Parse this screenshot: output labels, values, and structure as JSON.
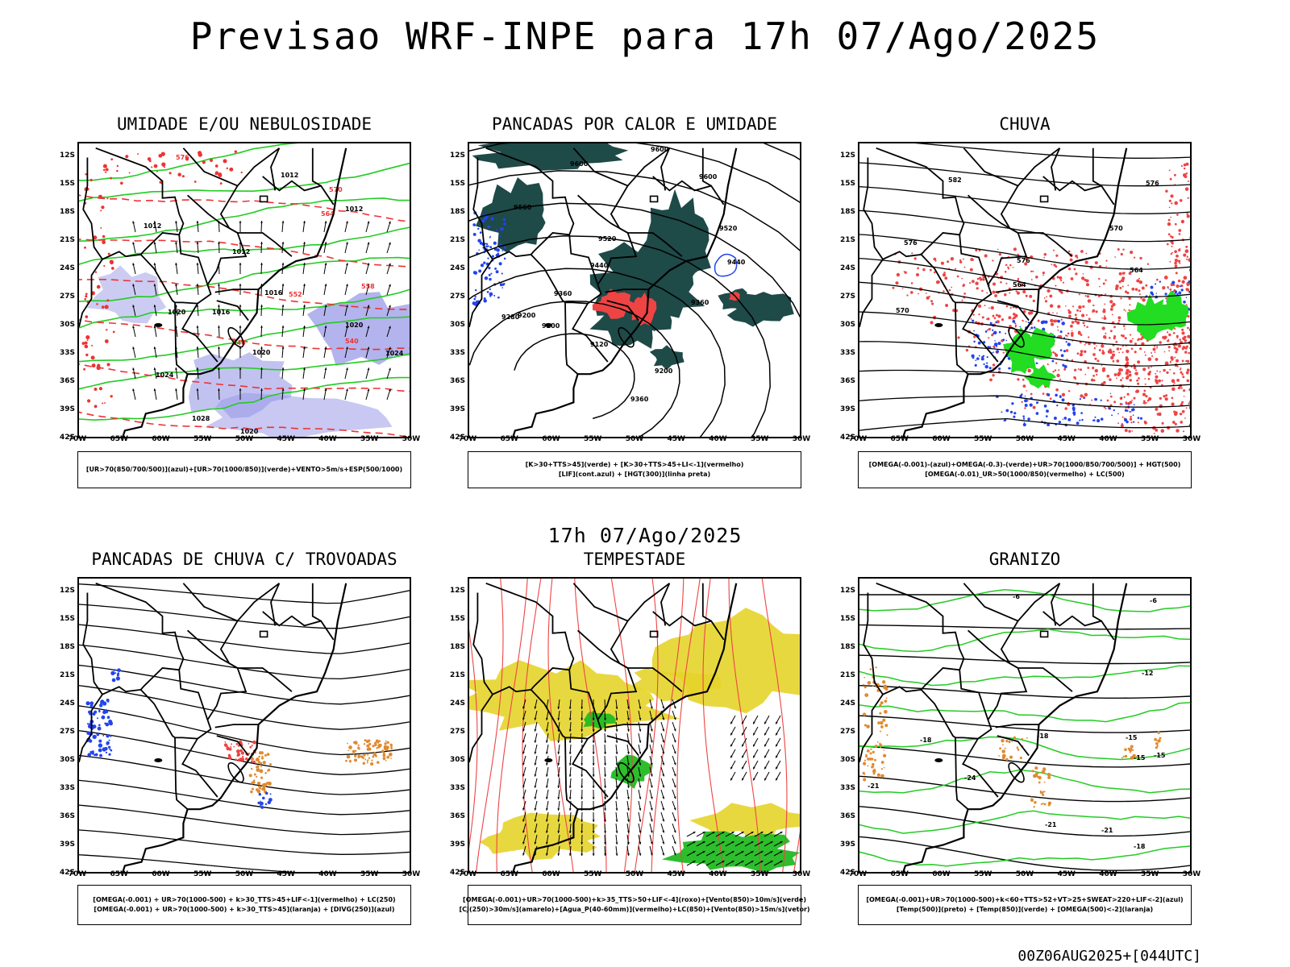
{
  "header": {
    "title": "Previsao WRF-INPE  para 17h 07/Ago/2025",
    "mid_title": "17h 07/Ago/2025",
    "run_stamp": "00Z06AUG2025+[044UTC]"
  },
  "axes": {
    "lat_labels": [
      "12S",
      "15S",
      "18S",
      "21S",
      "24S",
      "27S",
      "30S",
      "33S",
      "36S",
      "39S",
      "42S"
    ],
    "lon_labels": [
      "70W",
      "65W",
      "60W",
      "55W",
      "50W",
      "45W",
      "40W",
      "35W",
      "30W"
    ]
  },
  "panels": [
    {
      "id": "umidade",
      "title": "UMIDADE E/OU NEBULOSIDADE",
      "legend": [
        "[UR>70(850/700/500)](azul)+[UR>70(1000/850)](verde)+VENTO>5m/s+ESP(500/1000)"
      ],
      "contour_labels": [
        "1012",
        "1012",
        "1012",
        "1012",
        "1016",
        "1016",
        "1020",
        "1020",
        "1020",
        "1024",
        "1024",
        "1028",
        "1020",
        "576",
        "570",
        "564",
        "558",
        "552",
        "546",
        "540"
      ]
    },
    {
      "id": "pancadas-calor",
      "title": "PANCADAS POR CALOR E UMIDADE",
      "legend": [
        "[K>30+TTS>45](verde) + [K>30+TTS>45+LI<-1](vermelho)",
        "[LIF](cont.azul) + [HGT(300)](linha preta)"
      ],
      "contour_labels": [
        "9600",
        "9600",
        "9600",
        "9560",
        "9520",
        "9520",
        "9440",
        "9440",
        "9360",
        "9360",
        "9280",
        "9200",
        "9200",
        "9120",
        "9200",
        "9360"
      ]
    },
    {
      "id": "chuva",
      "title": "CHUVA",
      "legend": [
        "[OMEGA(-0.001)-(azul)+OMEGA(-0.3)-(verde)+UR>70(1000/850/700/500)] + HGT(500)",
        "[OMEGA(-0.01)_UR>50(1000/850)(vermelho) + LC(500)"
      ],
      "contour_labels": [
        "582",
        "576",
        "576",
        "570",
        "564",
        "576",
        "570",
        "564"
      ]
    },
    {
      "id": "trovoadas",
      "title": "PANCADAS DE CHUVA C/ TROVOADAS",
      "legend": [
        "[OMEGA(-0.001) + UR>70(1000-500) + k>30_TTS>45+LIF<-1](vermelho) + LC(250)",
        "[OMEGA(-0.001) + UR>70(1000-500) + k>30_TTS>45](laranja) + [DIVG(250)](azul)"
      ],
      "contour_labels": []
    },
    {
      "id": "tempestade",
      "title": "TEMPESTADE",
      "legend": [
        "[OMEGA(-0.001)+UR>70(1000-500)+k>35_TTS>50+LIF<-4](roxo)+[Vento(850)>10m/s](verde)",
        "[CJ(250)>30m/s](amarelo)+[Agua_P(40-60mm)](vermelho)+LC(850)+[Vento(850)>15m/s](vetor)"
      ],
      "contour_labels": []
    },
    {
      "id": "granizo",
      "title": "GRANIZO",
      "legend": [
        "[OMEGA(-0.001)+UR>70(1000-500)+k<60+TTS>52+VT>25+SWEAT>220+LIF<-2](azul)",
        "[Temp(500)](preto) + [Temp(850)](verde) + [OMEGA(500)<-2](laranja)"
      ],
      "contour_labels": [
        "-6",
        "-12",
        "-15",
        "-18",
        "-18",
        "-15",
        "-24",
        "-21",
        "-15",
        "-21",
        "-21",
        "-18",
        "-6"
      ]
    }
  ],
  "colors": {
    "humidity_blue": "#9a9ae8",
    "humidity_green": "#22cc22",
    "thickness_red": "#ee3333",
    "convection_dark": "#1e4a48",
    "rain_red": "#ee4444",
    "rain_blue": "#2244ee",
    "rain_green": "#22dd22",
    "jet_yellow": "#e6d42a",
    "hail_orange": "#e08a30"
  }
}
